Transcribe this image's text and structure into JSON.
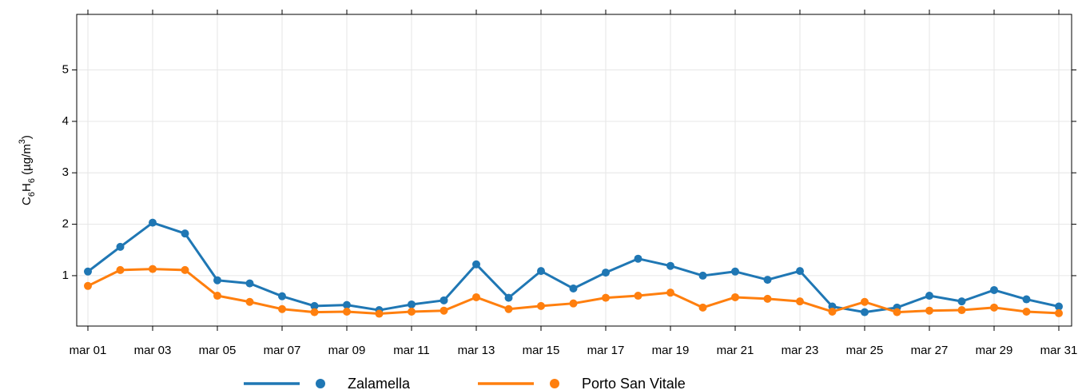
{
  "chart_data": {
    "type": "line",
    "y_label": [
      "C",
      "6",
      "H",
      "6",
      " (µg/m",
      "3",
      ")"
    ],
    "categories": [
      "mar 01",
      null,
      "mar 03",
      null,
      "mar 05",
      null,
      "mar 07",
      null,
      "mar 09",
      null,
      "mar 11",
      null,
      "mar 13",
      null,
      "mar 15",
      null,
      "mar 17",
      null,
      "mar 19",
      null,
      "mar 21",
      null,
      "mar 23",
      null,
      "mar 25",
      null,
      "mar 27",
      null,
      "mar 29",
      null,
      "mar 31"
    ],
    "series": [
      {
        "name": "Zalamella",
        "color": "#1f77b4",
        "values": [
          1.08,
          1.56,
          2.03,
          1.82,
          0.91,
          0.85,
          0.6,
          0.41,
          0.43,
          0.33,
          0.44,
          0.52,
          1.22,
          0.57,
          1.09,
          0.75,
          1.06,
          1.33,
          1.19,
          1.0,
          1.08,
          0.92,
          1.09,
          0.4,
          0.29,
          0.38,
          0.61,
          0.5,
          0.72,
          0.54,
          0.4
        ]
      },
      {
        "name": "Porto San Vitale",
        "color": "#ff7f0e",
        "values": [
          0.8,
          1.11,
          1.13,
          1.11,
          0.61,
          0.49,
          0.35,
          0.29,
          0.3,
          0.26,
          0.3,
          0.32,
          0.58,
          0.35,
          0.41,
          0.46,
          0.57,
          0.61,
          0.67,
          0.38,
          0.58,
          0.55,
          0.5,
          0.3,
          0.49,
          0.29,
          0.32,
          0.33,
          0.38,
          0.3,
          0.27
        ]
      }
    ],
    "ylim": [
      0.02,
      6.08
    ],
    "yticks": [
      1,
      2,
      3,
      4,
      5
    ],
    "grid": true
  }
}
